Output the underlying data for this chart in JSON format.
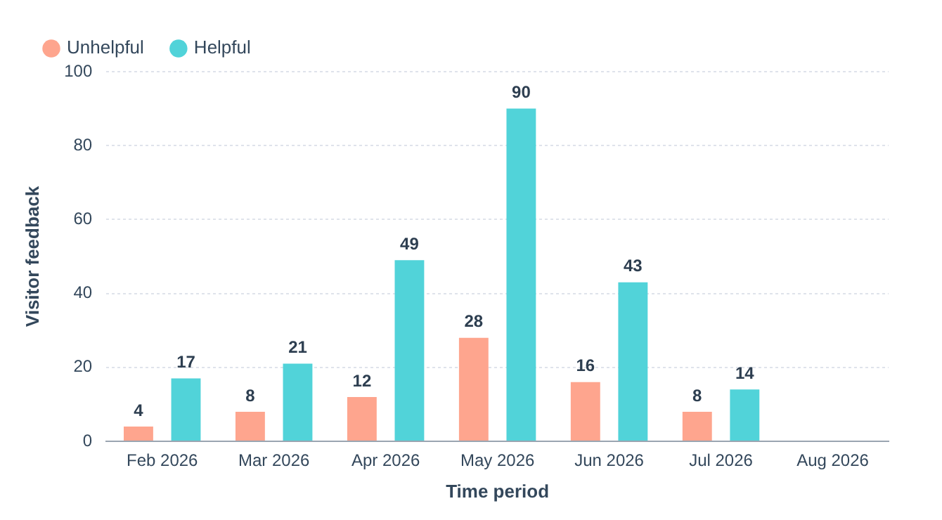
{
  "chart_data": {
    "type": "bar",
    "xlabel": "Time period",
    "ylabel": "Visitor feedback",
    "categories": [
      "Feb 2026",
      "Mar 2026",
      "Apr 2026",
      "May 2026",
      "Jun 2026",
      "Jul 2026",
      "Aug 2026"
    ],
    "series": [
      {
        "name": "Unhelpful",
        "color": "#fea58e",
        "values": [
          4,
          8,
          12,
          28,
          16,
          8,
          null
        ]
      },
      {
        "name": "Helpful",
        "color": "#51d3d9",
        "values": [
          17,
          21,
          49,
          90,
          43,
          14,
          null
        ]
      }
    ],
    "ylim": [
      0,
      100
    ],
    "yticks": [
      0,
      20,
      40,
      60,
      80,
      100
    ],
    "grid": "y",
    "legend": "top left",
    "data_labels": true
  }
}
